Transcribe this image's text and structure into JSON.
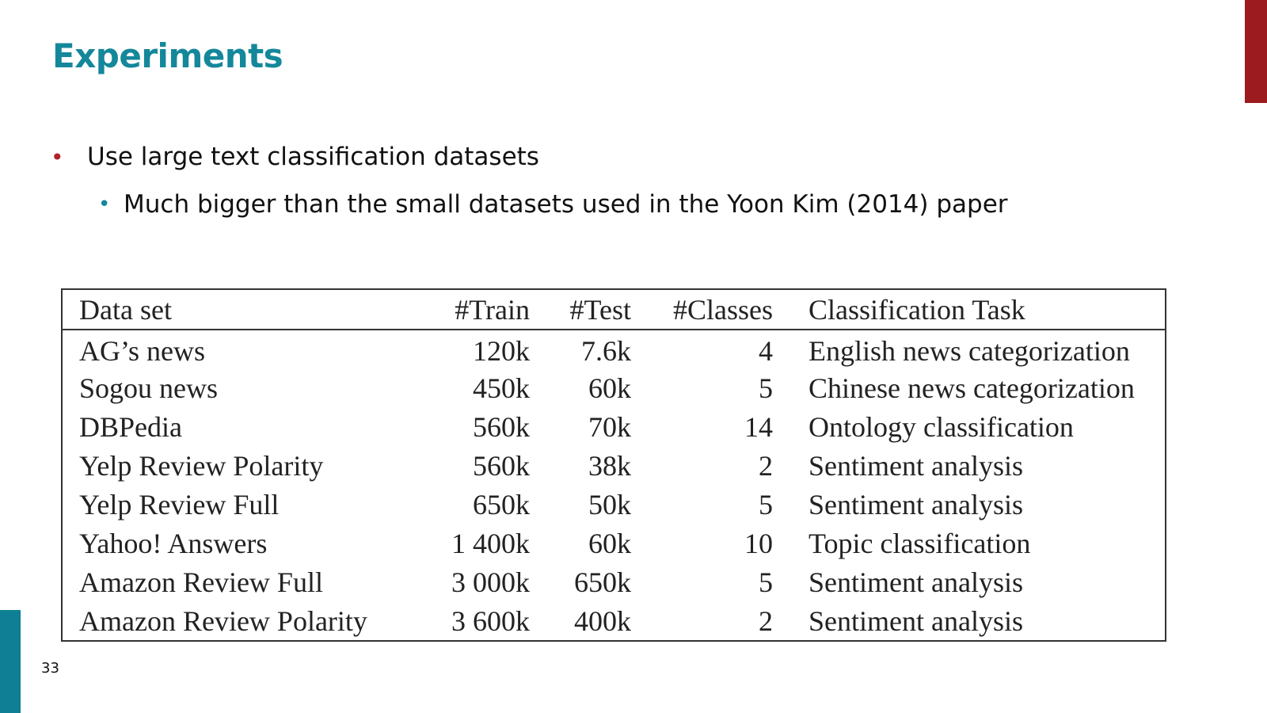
{
  "slide": {
    "title": "Experiments",
    "bullets": [
      {
        "text": "Use large text classification datasets"
      },
      {
        "text": "Much bigger than the small datasets used in the Yoon Kim (2014) paper"
      }
    ],
    "bullet_glyph": "•",
    "page_number": "33"
  },
  "table": {
    "headers": [
      "Data set",
      "#Train",
      "#Test",
      "#Classes",
      "Classification Task"
    ],
    "rows": [
      [
        "AG’s news",
        "120k",
        "7.6k",
        "4",
        "English news categorization"
      ],
      [
        "Sogou news",
        "450k",
        "60k",
        "5",
        "Chinese news categorization"
      ],
      [
        "DBPedia",
        "560k",
        "70k",
        "14",
        "Ontology classification"
      ],
      [
        "Yelp Review Polarity",
        "560k",
        "38k",
        "2",
        "Sentiment analysis"
      ],
      [
        "Yelp Review Full",
        "650k",
        "50k",
        "5",
        "Sentiment analysis"
      ],
      [
        "Yahoo! Answers",
        "1 400k",
        "60k",
        "10",
        "Topic classification"
      ],
      [
        "Amazon Review Full",
        "3 000k",
        "650k",
        "5",
        "Sentiment analysis"
      ],
      [
        "Amazon Review Polarity",
        "3 600k",
        "400k",
        "2",
        "Sentiment analysis"
      ]
    ]
  },
  "colors": {
    "title": "#14879b",
    "accent_red": "#9b1b1f",
    "accent_teal": "#0e7f94",
    "bullet_red": "#b0222a",
    "bullet_teal": "#14879b"
  }
}
